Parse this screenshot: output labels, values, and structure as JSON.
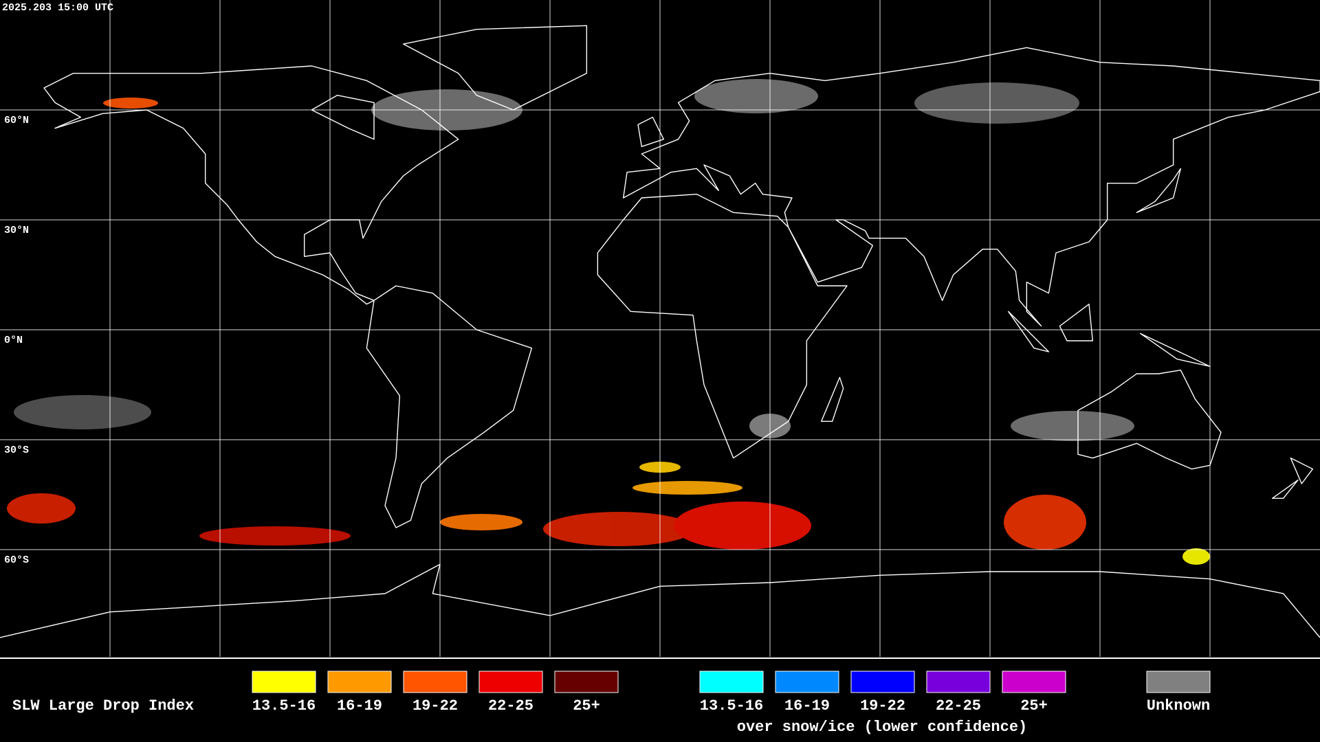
{
  "timestamp": "2025.203 15:00 UTC",
  "latitude_labels": [
    "60°N",
    "30°N",
    "0°N",
    "30°S",
    "60°S"
  ],
  "legend": {
    "title": "SLW Large Drop Index",
    "items": [
      {
        "label": "13.5-16",
        "color": "#ffff00"
      },
      {
        "label": "16-19",
        "color": "#ff9900"
      },
      {
        "label": "19-22",
        "color": "#ff5500"
      },
      {
        "label": "22-25",
        "color": "#ee0000"
      },
      {
        "label": "25+",
        "color": "#660000"
      }
    ],
    "snow_items": [
      {
        "label": "13.5-16",
        "color": "#00ffff"
      },
      {
        "label": "16-19",
        "color": "#0088ff"
      },
      {
        "label": "19-22",
        "color": "#0000ff"
      },
      {
        "label": "22-25",
        "color": "#7700dd"
      },
      {
        "label": "25+",
        "color": "#cc00cc"
      }
    ],
    "snow_caption": "over snow/ice (lower confidence)",
    "unknown": {
      "label": "Unknown",
      "color": "#808080"
    }
  }
}
